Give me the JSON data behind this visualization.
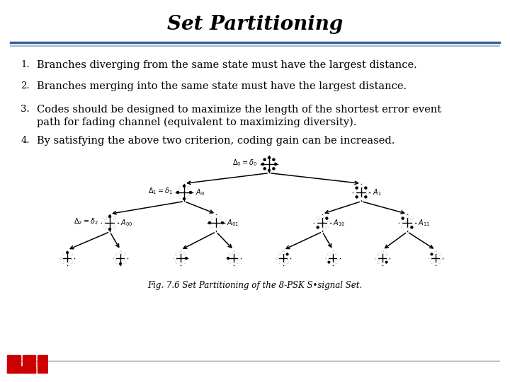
{
  "title": "Set Partitioning",
  "title_fontsize": 20,
  "title_style": "italic",
  "title_weight": "bold",
  "title_font": "DejaVu Serif",
  "bg_color": "#ffffff",
  "items": [
    {
      "number": "1.",
      "text": "Branches diverging from the same state must have the largest distance."
    },
    {
      "number": "2.",
      "text": "Branches merging into the same state must have the largest distance."
    },
    {
      "number": "3.",
      "text": "Codes should be designed to maximize the length of the shortest error event\npath for fading channel (equivalent to maximizing diversity)."
    },
    {
      "number": "4.",
      "text": "By satisfying the above two criterion, coding gain can be increased."
    }
  ],
  "fig_caption": "Fig. 7.6 Set Partitioning of the 8-PSK S•signal Set.",
  "footer_line_color": "#999999",
  "header_line_color1": "#3a5fa0",
  "header_line_color2": "#8aaad0",
  "text_color": "#000000",
  "number_fontsize": 9.5,
  "text_fontsize": 10.5,
  "caption_fontsize": 8.5,
  "label_fontsize": 7.0
}
